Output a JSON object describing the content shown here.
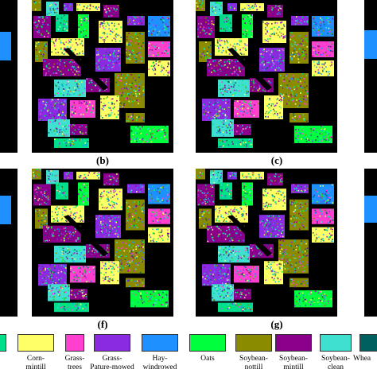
{
  "panels": [
    {
      "id": "a_partial_top",
      "caption": ""
    },
    {
      "id": "b",
      "caption": "(b)"
    },
    {
      "id": "c",
      "caption": "(c)"
    },
    {
      "id": "d_partial_top",
      "caption": ""
    },
    {
      "id": "e_partial_bottom",
      "caption": ""
    },
    {
      "id": "f",
      "caption": "(f)"
    },
    {
      "id": "g",
      "caption": "(g)"
    },
    {
      "id": "h_partial_bottom",
      "caption": ""
    }
  ],
  "legend": [
    {
      "label": "",
      "color": "#00e08c"
    },
    {
      "label": "Corn-\nmintill",
      "color": "#ffff66"
    },
    {
      "label": "Grass-\ntrees",
      "color": "#ff3fd0"
    },
    {
      "label": "Grass-\nPature-mowed",
      "color": "#8a2be2"
    },
    {
      "label": "Hay-\nwindrowed",
      "color": "#1e90ff"
    },
    {
      "label": "Oats",
      "color": "#00ff3c"
    },
    {
      "label": "Soybean-\nnottill",
      "color": "#8b8b00"
    },
    {
      "label": "Soybean-\nmintill",
      "color": "#8b008b"
    },
    {
      "label": "Soybean-\nclean",
      "color": "#40e0d0"
    },
    {
      "label": "Whea",
      "color": "#006060"
    }
  ]
}
